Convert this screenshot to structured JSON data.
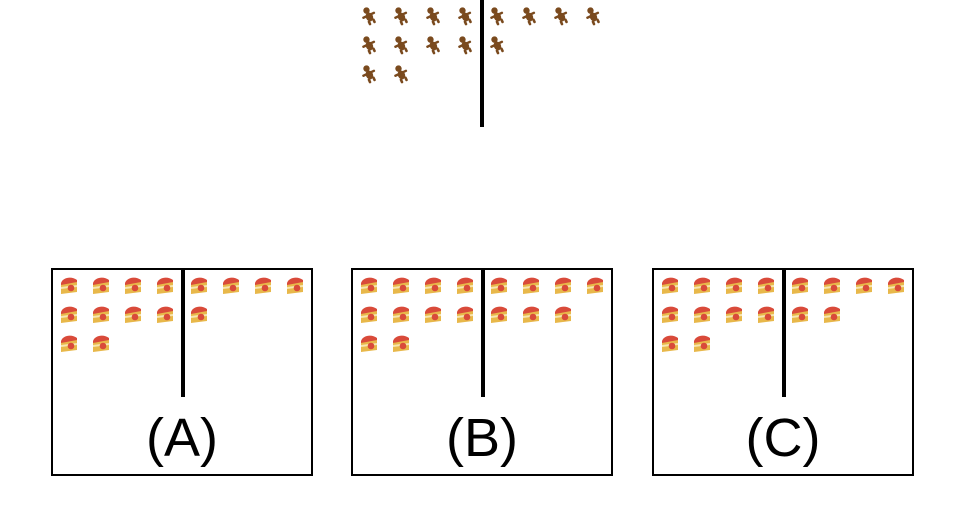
{
  "question": {
    "icon": "gingerbread-man-icon",
    "icon_color": "#7a4a1e",
    "left_count": 10,
    "right_count": 5
  },
  "options": [
    {
      "label": "(A)",
      "icon": "cake-slice-icon",
      "left_count": 10,
      "right_count": 5
    },
    {
      "label": "(B)",
      "icon": "cake-slice-icon",
      "left_count": 10,
      "right_count": 7
    },
    {
      "label": "(C)",
      "icon": "cake-slice-icon",
      "left_count": 10,
      "right_count": 6
    }
  ],
  "colors": {
    "line": "#000000",
    "cake_sponge": "#e8b84a",
    "cake_frosting": "#d94a3a",
    "cake_cream": "#f7e6b0",
    "gingerbread": "#7a4a1e"
  }
}
